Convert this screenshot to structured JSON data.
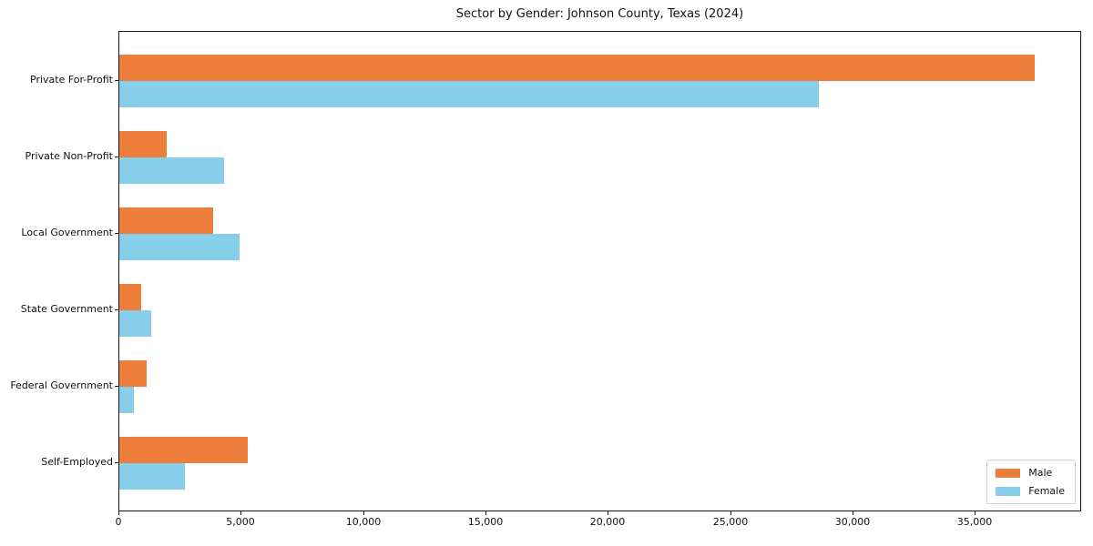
{
  "chart_data": {
    "type": "bar",
    "orientation": "horizontal",
    "title": "Sector by Gender: Johnson County, Texas (2024)",
    "categories": [
      "Private For-Profit",
      "Private Non-Profit",
      "Local Government",
      "State Government",
      "Federal Government",
      "Self-Employed"
    ],
    "series": [
      {
        "name": "Male",
        "color": "#ED7D3A",
        "values": [
          37400,
          1950,
          3820,
          910,
          1130,
          5230
        ]
      },
      {
        "name": "Female",
        "color": "#87CEEB",
        "values": [
          28600,
          4270,
          4930,
          1290,
          610,
          2670
        ]
      }
    ],
    "xlabel": "",
    "ylabel": "",
    "xlim": [
      0,
      39300
    ],
    "xticks": [
      {
        "value": 0,
        "label": "0"
      },
      {
        "value": 5000,
        "label": "5,000"
      },
      {
        "value": 10000,
        "label": "10,000"
      },
      {
        "value": 15000,
        "label": "15,000"
      },
      {
        "value": 20000,
        "label": "20,000"
      },
      {
        "value": 25000,
        "label": "25,000"
      },
      {
        "value": 30000,
        "label": "30,000"
      },
      {
        "value": 35000,
        "label": "35,000"
      }
    ],
    "grid": false,
    "legend": {
      "position": "lower right",
      "entries": [
        "Male",
        "Female"
      ]
    }
  }
}
